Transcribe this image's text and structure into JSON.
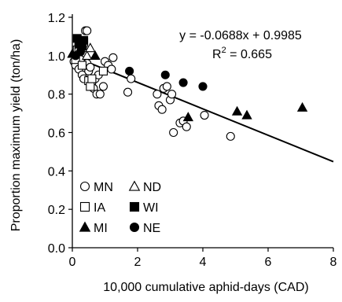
{
  "chart_data": {
    "type": "scatter",
    "title": "",
    "xlabel": "10,000 cumulative aphid-days (CAD)",
    "ylabel": "Proportion maximum yield (ton/ha)",
    "xlim": [
      0,
      8
    ],
    "ylim": [
      0,
      1.2
    ],
    "x_ticks": [
      0,
      2,
      4,
      6,
      8
    ],
    "y_ticks": [
      0.0,
      0.2,
      0.4,
      0.6,
      0.8,
      1.0,
      1.2
    ],
    "y_tick_labels": [
      "0.0",
      "0.2",
      "0.4",
      "0.6",
      "0.8",
      "1.0",
      "1.2"
    ],
    "grid": false,
    "legend": "bottom-left",
    "annotation": {
      "equation": "y = -0.0688x + 0.9985",
      "r2_prefix": "R",
      "r2_exp": "2",
      "r2_suffix": " = 0.665"
    },
    "trendline": {
      "slope": -0.0688,
      "intercept": 0.9985,
      "x_range": [
        0,
        8
      ]
    },
    "series": [
      {
        "name": "MN",
        "marker": "circle-open",
        "points": [
          [
            0.05,
            0.97
          ],
          [
            0.1,
            0.95
          ],
          [
            0.15,
            1.0
          ],
          [
            0.2,
            0.93
          ],
          [
            0.25,
            0.98
          ],
          [
            0.3,
            0.9
          ],
          [
            0.3,
            1.06
          ],
          [
            0.35,
            0.88
          ],
          [
            0.4,
            1.13
          ],
          [
            0.45,
            1.13
          ],
          [
            0.45,
            0.96
          ],
          [
            0.5,
            0.92
          ],
          [
            0.55,
            0.94
          ],
          [
            0.6,
            0.86
          ],
          [
            0.65,
            0.83
          ],
          [
            0.7,
            0.88
          ],
          [
            0.75,
            0.8
          ],
          [
            0.8,
            0.9
          ],
          [
            0.85,
            0.8
          ],
          [
            0.95,
            0.84
          ],
          [
            1.0,
            0.97
          ],
          [
            1.1,
            0.95
          ],
          [
            1.2,
            0.93
          ],
          [
            1.25,
            0.99
          ],
          [
            1.7,
            0.81
          ],
          [
            1.8,
            0.88
          ],
          [
            2.6,
            0.8
          ],
          [
            2.65,
            0.74
          ],
          [
            2.75,
            0.72
          ],
          [
            2.8,
            0.83
          ],
          [
            2.9,
            0.84
          ],
          [
            3.0,
            0.77
          ],
          [
            3.05,
            0.8
          ],
          [
            3.1,
            0.6
          ],
          [
            3.3,
            0.65
          ],
          [
            3.4,
            0.66
          ],
          [
            3.5,
            0.63
          ],
          [
            4.05,
            0.69
          ],
          [
            4.85,
            0.58
          ]
        ]
      },
      {
        "name": "ND",
        "marker": "triangle-open",
        "points": [
          [
            0.3,
            1.06
          ],
          [
            0.45,
            1.0
          ],
          [
            0.55,
            1.04
          ]
        ]
      },
      {
        "name": "IA",
        "marker": "square-open",
        "points": [
          [
            0.1,
            0.98
          ],
          [
            0.15,
            1.03
          ],
          [
            0.2,
            1.04
          ],
          [
            0.3,
            0.95
          ],
          [
            0.35,
            1.07
          ],
          [
            0.5,
            0.87
          ],
          [
            0.55,
            0.84
          ],
          [
            0.6,
            0.88
          ],
          [
            0.95,
            0.92
          ]
        ]
      },
      {
        "name": "WI",
        "marker": "square-filled",
        "points": [
          [
            0.15,
            1.09
          ],
          [
            0.2,
            1.06
          ],
          [
            0.3,
            1.05
          ],
          [
            0.35,
            1.08
          ]
        ]
      },
      {
        "name": "MI",
        "marker": "triangle-filled",
        "points": [
          [
            0.0,
            1.01
          ],
          [
            0.25,
            1.04
          ],
          [
            0.7,
            1.0
          ],
          [
            3.55,
            0.68
          ],
          [
            5.05,
            0.71
          ],
          [
            5.35,
            0.69
          ],
          [
            7.05,
            0.73
          ]
        ]
      },
      {
        "name": "NE",
        "marker": "circle-filled",
        "points": [
          [
            0.1,
            1.0
          ],
          [
            0.25,
            1.02
          ],
          [
            1.75,
            0.92
          ],
          [
            2.85,
            0.9
          ],
          [
            3.4,
            0.86
          ],
          [
            4.0,
            0.84
          ]
        ]
      }
    ]
  }
}
